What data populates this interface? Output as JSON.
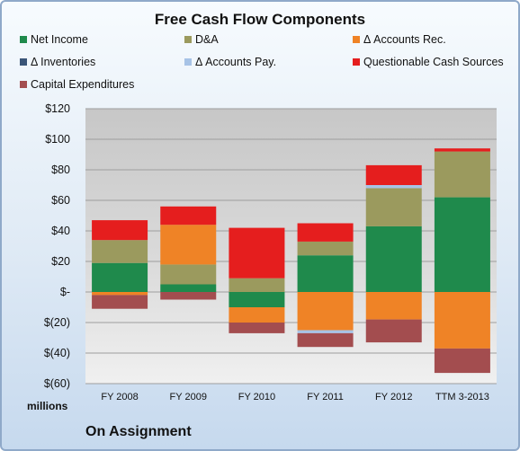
{
  "chart_data": {
    "type": "bar",
    "stacked": true,
    "title": "Free Cash Flow Components",
    "categories": [
      "FY 2008",
      "FY 2009",
      "FY 2010",
      "FY 2011",
      "FY 2012",
      "TTM 3-2013"
    ],
    "ylim": [
      -60,
      120
    ],
    "yticks": [
      {
        "value": 120,
        "label": "$120"
      },
      {
        "value": 100,
        "label": "$100"
      },
      {
        "value": 80,
        "label": "$80"
      },
      {
        "value": 60,
        "label": "$60"
      },
      {
        "value": 40,
        "label": "$40"
      },
      {
        "value": 20,
        "label": "$20"
      },
      {
        "value": 0,
        "label": "$-"
      },
      {
        "value": -20,
        "label": "$(20)"
      },
      {
        "value": -40,
        "label": "$(40)"
      },
      {
        "value": -60,
        "label": "$(60)"
      }
    ],
    "ylabel_units": "millions",
    "grid": true,
    "legend_position": "top",
    "series": [
      {
        "name": "Net Income",
        "color": "#1f8a4c",
        "values": [
          19,
          5,
          -10,
          24,
          43,
          62
        ]
      },
      {
        "name": "D&A",
        "color": "#9b9a5e",
        "values": [
          15,
          13,
          9,
          9,
          25,
          30
        ]
      },
      {
        "name": "Δ Accounts Rec.",
        "color": "#ef8326",
        "values": [
          -2,
          26,
          -10,
          -25,
          -18,
          -37
        ]
      },
      {
        "name": "Δ Inventories",
        "color": "#3a5578",
        "values": [
          0,
          0,
          0,
          0,
          0,
          0
        ]
      },
      {
        "name": "Δ Accounts Pay.",
        "color": "#a7c3e6",
        "values": [
          0,
          0,
          0,
          -2,
          2,
          0
        ]
      },
      {
        "name": "Questionable Cash Sources",
        "color": "#e51e1e",
        "values": [
          13,
          12,
          33,
          12,
          13,
          2
        ]
      },
      {
        "name": "Capital Expenditures",
        "color": "#a34d4f",
        "values": [
          -9,
          -5,
          -7,
          -9,
          -15,
          -16
        ]
      }
    ]
  },
  "footer": {
    "company": "On Assignment"
  }
}
